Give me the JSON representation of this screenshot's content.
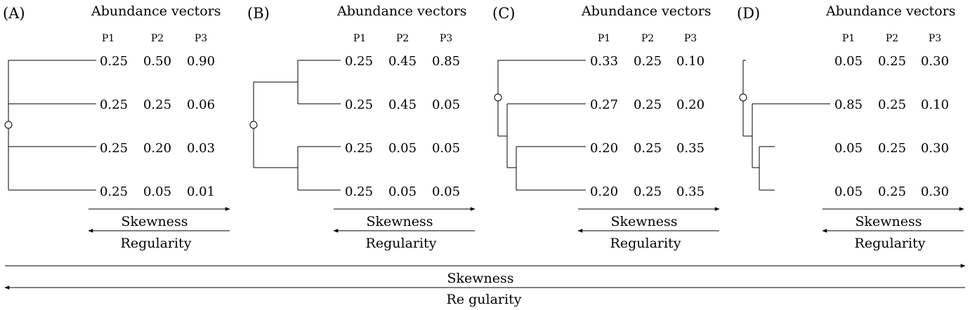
{
  "panels": [
    {
      "letter": "(A)",
      "title": "Abundance vectors",
      "columns": [
        "P1",
        "P2",
        "P3"
      ],
      "rows": [
        [
          "0.25",
          "0.50",
          "0.90"
        ],
        [
          "0.25",
          "0.25",
          "0.06"
        ],
        [
          "0.25",
          "0.20",
          "0.03"
        ],
        [
          "0.25",
          "0.05",
          "0.01"
        ]
      ],
      "arrow_top": "Skewness",
      "arrow_bottom": "Regularity"
    },
    {
      "letter": "(B)",
      "title": "Abundance vectors",
      "columns": [
        "P1",
        "P2",
        "P3"
      ],
      "rows": [
        [
          "0.25",
          "0.45",
          "0.85"
        ],
        [
          "0.25",
          "0.45",
          "0.05"
        ],
        [
          "0.25",
          "0.05",
          "0.05"
        ],
        [
          "0.25",
          "0.05",
          "0.05"
        ]
      ],
      "arrow_top": "Skewness",
      "arrow_bottom": "Regularity"
    },
    {
      "letter": "(C)",
      "title": "Abundance vectors",
      "columns": [
        "P1",
        "P2",
        "P3"
      ],
      "rows": [
        [
          "0.33",
          "0.25",
          "0.10"
        ],
        [
          "0.27",
          "0.25",
          "0.20"
        ],
        [
          "0.20",
          "0.25",
          "0.35"
        ],
        [
          "0.20",
          "0.25",
          "0.35"
        ]
      ],
      "arrow_top": "Skewness",
      "arrow_bottom": "Regularity"
    },
    {
      "letter": "(D)",
      "title": "Abundance vectors",
      "columns": [
        "P1",
        "P2",
        "P3"
      ],
      "rows": [
        [
          "0.05",
          "0.25",
          "0.30"
        ],
        [
          "0.85",
          "0.25",
          "0.10"
        ],
        [
          "0.05",
          "0.25",
          "0.30"
        ],
        [
          "0.05",
          "0.25",
          "0.30"
        ]
      ],
      "arrow_top": "Skewness",
      "arrow_bottom": "Regularity"
    }
  ],
  "global_axis": {
    "top": "Skewness",
    "bottom": "Re gularity"
  }
}
